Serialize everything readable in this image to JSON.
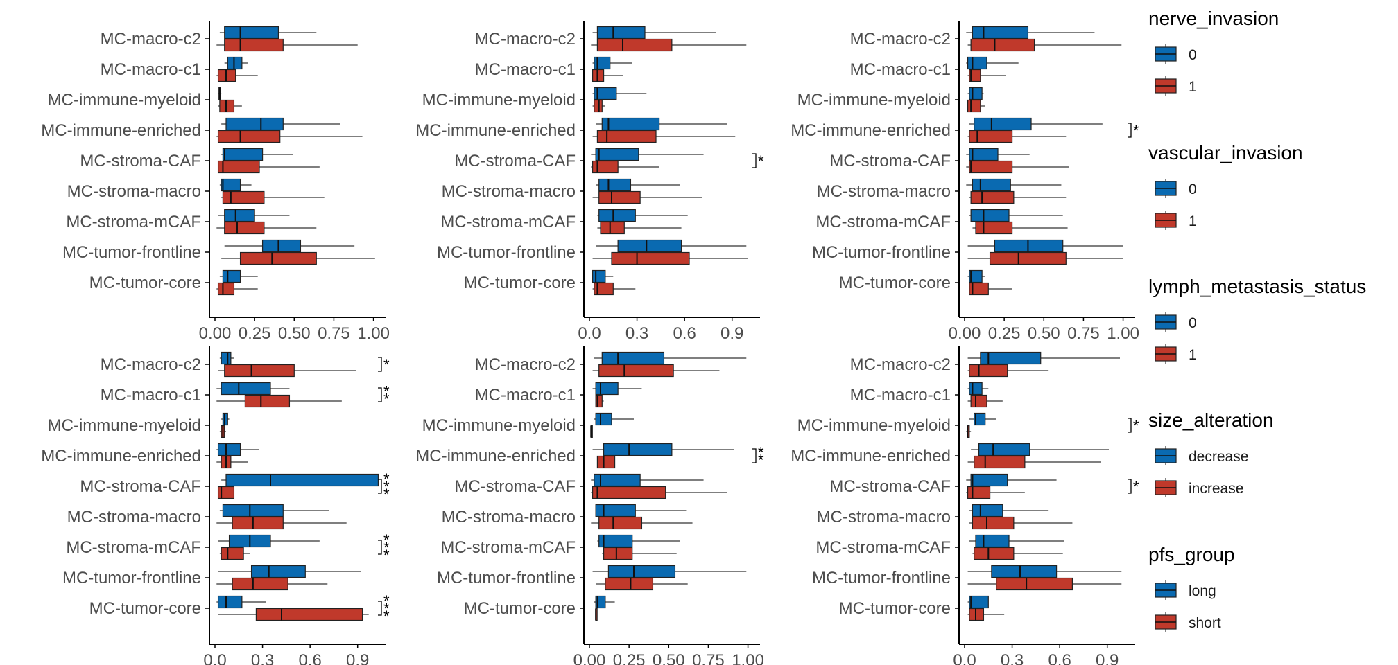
{
  "colors": {
    "group1": "#0A6AB1",
    "group2": "#C0392B",
    "axis": "#000000",
    "text": "#4d4d4d"
  },
  "categories": [
    "MC-macro-c2",
    "MC-macro-c1",
    "MC-immune-myeloid",
    "MC-immune-enriched",
    "MC-stroma-CAF",
    "MC-stroma-macro",
    "MC-stroma-mCAF",
    "MC-tumor-frontline",
    "MC-tumor-core"
  ],
  "legends": [
    {
      "title": "nerve_invasion",
      "labels": [
        "0",
        "1"
      ]
    },
    {
      "title": "vascular_invasion",
      "labels": [
        "0",
        "1"
      ]
    },
    {
      "title": "lymph_metastasis_status",
      "labels": [
        "0",
        "1"
      ]
    },
    {
      "title": "size_alteration",
      "labels": [
        "decrease",
        "increase"
      ]
    },
    {
      "title": "pfs_group",
      "labels": [
        "long",
        "short"
      ]
    }
  ],
  "chart_data": [
    {
      "type": "boxplot",
      "orientation": "horizontal",
      "xlim": [
        0,
        1.05
      ],
      "ticks": [
        0,
        0.25,
        0.5,
        0.75,
        1.0
      ],
      "tick_labels": [
        "0.00",
        "0.25",
        "0.50",
        "0.75",
        "1.00"
      ],
      "grouping": "nerve_invasion",
      "series": [
        {
          "group": "0",
          "boxes": [
            [
              0.03,
              0.06,
              0.16,
              0.4,
              0.64
            ],
            [
              0.06,
              0.08,
              0.12,
              0.17,
              0.21
            ],
            [
              0.02,
              0.025,
              0.03,
              0.035,
              0.04
            ],
            [
              0.04,
              0.07,
              0.29,
              0.43,
              0.79
            ],
            [
              0.04,
              0.05,
              0.06,
              0.3,
              0.49
            ],
            [
              0.03,
              0.04,
              0.05,
              0.16,
              0.23
            ],
            [
              0.02,
              0.06,
              0.13,
              0.25,
              0.47
            ],
            [
              0.06,
              0.3,
              0.4,
              0.54,
              0.88
            ],
            [
              0.03,
              0.05,
              0.08,
              0.16,
              0.27
            ]
          ]
        },
        {
          "group": "1",
          "boxes": [
            [
              0.01,
              0.06,
              0.16,
              0.43,
              0.9
            ],
            [
              0.01,
              0.02,
              0.07,
              0.13,
              0.27
            ],
            [
              0.02,
              0.03,
              0.07,
              0.12,
              0.17
            ],
            [
              0.01,
              0.02,
              0.16,
              0.41,
              0.93
            ],
            [
              0.02,
              0.02,
              0.05,
              0.28,
              0.66
            ],
            [
              0.04,
              0.05,
              0.1,
              0.31,
              0.69
            ],
            [
              0.01,
              0.06,
              0.14,
              0.31,
              0.64
            ],
            [
              0.04,
              0.16,
              0.36,
              0.64,
              1.01
            ],
            [
              0.01,
              0.02,
              0.05,
              0.12,
              0.27
            ]
          ]
        }
      ],
      "significance": []
    },
    {
      "type": "boxplot",
      "orientation": "horizontal",
      "xlim": [
        0,
        1.05
      ],
      "ticks": [
        0,
        0.3,
        0.6,
        0.9
      ],
      "tick_labels": [
        "0.0",
        "0.3",
        "0.6",
        "0.9"
      ],
      "grouping": "vascular_invasion",
      "series": [
        {
          "group": "0",
          "boxes": [
            [
              0.02,
              0.05,
              0.15,
              0.35,
              0.8
            ],
            [
              0.02,
              0.03,
              0.05,
              0.13,
              0.27
            ],
            [
              0.02,
              0.03,
              0.05,
              0.17,
              0.36
            ],
            [
              0.04,
              0.08,
              0.12,
              0.44,
              0.87
            ],
            [
              0.01,
              0.04,
              0.06,
              0.31,
              0.72
            ],
            [
              0.04,
              0.06,
              0.12,
              0.26,
              0.57
            ],
            [
              0.05,
              0.06,
              0.15,
              0.29,
              0.62
            ],
            [
              0.04,
              0.18,
              0.36,
              0.58,
              0.99
            ],
            [
              0.02,
              0.02,
              0.04,
              0.1,
              0.15
            ]
          ]
        },
        {
          "group": "1",
          "boxes": [
            [
              0.01,
              0.05,
              0.21,
              0.52,
              0.99
            ],
            [
              0.02,
              0.02,
              0.05,
              0.09,
              0.21
            ],
            [
              0.02,
              0.03,
              0.06,
              0.08,
              0.1
            ],
            [
              0.02,
              0.05,
              0.11,
              0.42,
              0.92
            ],
            [
              0.01,
              0.02,
              0.05,
              0.18,
              0.44
            ],
            [
              0.02,
              0.06,
              0.14,
              0.32,
              0.71
            ],
            [
              0.05,
              0.07,
              0.13,
              0.22,
              0.58
            ],
            [
              0.02,
              0.14,
              0.3,
              0.63,
              1.0
            ],
            [
              0.02,
              0.03,
              0.05,
              0.15,
              0.29
            ]
          ]
        }
      ],
      "significance": [
        {
          "category": "MC-stroma-CAF",
          "label": "*"
        }
      ]
    },
    {
      "type": "boxplot",
      "orientation": "horizontal",
      "xlim": [
        0,
        1.05
      ],
      "ticks": [
        0,
        0.25,
        0.5,
        0.75,
        1.0
      ],
      "tick_labels": [
        "0.00",
        "0.25",
        "0.50",
        "0.75",
        "1.00"
      ],
      "grouping": "lymph_metastasis_status",
      "series": [
        {
          "group": "0",
          "boxes": [
            [
              0.01,
              0.05,
              0.12,
              0.4,
              0.82
            ],
            [
              0.01,
              0.02,
              0.05,
              0.14,
              0.34
            ],
            [
              0.02,
              0.03,
              0.05,
              0.11,
              0.12
            ],
            [
              0.03,
              0.06,
              0.17,
              0.42,
              0.87
            ],
            [
              0.01,
              0.03,
              0.05,
              0.21,
              0.41
            ],
            [
              0.01,
              0.05,
              0.1,
              0.29,
              0.61
            ],
            [
              0.03,
              0.04,
              0.12,
              0.28,
              0.62
            ],
            [
              0.02,
              0.19,
              0.4,
              0.62,
              1.0
            ],
            [
              0.02,
              0.03,
              0.04,
              0.11,
              0.13
            ]
          ]
        },
        {
          "group": "1",
          "boxes": [
            [
              0.02,
              0.04,
              0.19,
              0.44,
              0.99
            ],
            [
              0.02,
              0.03,
              0.04,
              0.1,
              0.26
            ],
            [
              0.02,
              0.02,
              0.04,
              0.1,
              0.13
            ],
            [
              0.02,
              0.03,
              0.08,
              0.3,
              0.64
            ],
            [
              0.01,
              0.03,
              0.04,
              0.3,
              0.66
            ],
            [
              0.03,
              0.04,
              0.11,
              0.31,
              0.64
            ],
            [
              0.05,
              0.07,
              0.12,
              0.3,
              0.65
            ],
            [
              0.02,
              0.16,
              0.34,
              0.64,
              1.0
            ],
            [
              0.03,
              0.03,
              0.05,
              0.15,
              0.3
            ]
          ]
        }
      ],
      "significance": [
        {
          "category": "MC-immune-enriched",
          "label": "*"
        }
      ]
    },
    {
      "type": "boxplot",
      "orientation": "horizontal",
      "xlim": [
        0,
        1.05
      ],
      "ticks": [
        0,
        0.3,
        0.6,
        0.9
      ],
      "tick_labels": [
        "0.0",
        "0.3",
        "0.6",
        "0.9"
      ],
      "grouping": "size_alteration",
      "series": [
        {
          "group": "decrease",
          "boxes": [
            [
              0.03,
              0.04,
              0.08,
              0.1,
              0.12
            ],
            [
              0.01,
              0.04,
              0.15,
              0.35,
              0.47
            ],
            [
              0.04,
              0.05,
              0.06,
              0.08,
              0.09
            ],
            [
              0.01,
              0.02,
              0.07,
              0.16,
              0.28
            ],
            [
              0.04,
              0.07,
              0.35,
              1.03,
              1.03
            ],
            [
              0.03,
              0.05,
              0.22,
              0.43,
              0.72
            ],
            [
              0.02,
              0.09,
              0.22,
              0.35,
              0.66
            ],
            [
              0.02,
              0.23,
              0.34,
              0.57,
              0.92
            ],
            [
              0.01,
              0.02,
              0.07,
              0.17,
              0.32
            ]
          ]
        },
        {
          "group": "increase",
          "boxes": [
            [
              0.02,
              0.06,
              0.23,
              0.5,
              0.89
            ],
            [
              0.01,
              0.19,
              0.29,
              0.47,
              0.8
            ],
            [
              0.03,
              0.04,
              0.05,
              0.06,
              0.07
            ],
            [
              0.01,
              0.04,
              0.07,
              0.1,
              0.21
            ],
            [
              0.02,
              0.02,
              0.04,
              0.12,
              0.12
            ],
            [
              0.01,
              0.11,
              0.24,
              0.43,
              0.83
            ],
            [
              0.03,
              0.04,
              0.08,
              0.18,
              0.22
            ],
            [
              0.01,
              0.11,
              0.24,
              0.46,
              0.71
            ],
            [
              0.02,
              0.26,
              0.42,
              0.93,
              0.97
            ]
          ]
        }
      ],
      "significance": [
        {
          "category": "MC-macro-c2",
          "label": "*"
        },
        {
          "category": "MC-macro-c1",
          "label": "**"
        },
        {
          "category": "MC-stroma-CAF",
          "label": "***"
        },
        {
          "category": "MC-stroma-mCAF",
          "label": "***"
        },
        {
          "category": "MC-tumor-core",
          "label": "***"
        }
      ]
    },
    {
      "type": "boxplot",
      "orientation": "horizontal",
      "xlim": [
        0,
        1.05
      ],
      "ticks": [
        0,
        0.25,
        0.5,
        0.75,
        1.0
      ],
      "tick_labels": [
        "0.00",
        "0.25",
        "0.50",
        "0.75",
        "1.00"
      ],
      "grouping": "pfs_group",
      "series": [
        {
          "group": "long",
          "boxes": [
            [
              0.03,
              0.08,
              0.18,
              0.47,
              0.99
            ],
            [
              0.02,
              0.04,
              0.07,
              0.18,
              0.33
            ],
            [
              0.03,
              0.04,
              0.07,
              0.14,
              0.28
            ],
            [
              0.02,
              0.09,
              0.25,
              0.52,
              0.91
            ],
            [
              0.01,
              0.03,
              0.07,
              0.32,
              0.72
            ],
            [
              0.04,
              0.04,
              0.09,
              0.29,
              0.61
            ],
            [
              0.05,
              0.06,
              0.09,
              0.27,
              0.57
            ],
            [
              0.02,
              0.12,
              0.28,
              0.54,
              0.99
            ],
            [
              0.03,
              0.04,
              0.05,
              0.1,
              0.16
            ]
          ]
        },
        {
          "group": "short",
          "boxes": [
            [
              0.02,
              0.06,
              0.22,
              0.53,
              0.82
            ],
            [
              0.04,
              0.04,
              0.05,
              0.08,
              0.09
            ],
            [
              0.01,
              0.01,
              0.01,
              0.01,
              0.01
            ],
            [
              0.05,
              0.05,
              0.09,
              0.16,
              0.16
            ],
            [
              0.01,
              0.02,
              0.05,
              0.48,
              0.87
            ],
            [
              0.01,
              0.06,
              0.15,
              0.33,
              0.65
            ],
            [
              0.08,
              0.09,
              0.17,
              0.27,
              0.55
            ],
            [
              0.04,
              0.1,
              0.26,
              0.4,
              0.62
            ],
            [
              0.04,
              0.04,
              0.04,
              0.04,
              0.04
            ]
          ]
        }
      ],
      "significance": [
        {
          "category": "MC-immune-enriched",
          "label": "**"
        }
      ]
    },
    {
      "type": "boxplot",
      "orientation": "horizontal",
      "xlim": [
        0,
        1.05
      ],
      "ticks": [
        0,
        0.3,
        0.6,
        0.9
      ],
      "tick_labels": [
        "0.0",
        "0.3",
        "0.6",
        "0.9"
      ],
      "grouping": "unlabeled",
      "series": [
        {
          "group": "blue",
          "boxes": [
            [
              0.02,
              0.1,
              0.15,
              0.48,
              0.98
            ],
            [
              0.02,
              0.03,
              0.05,
              0.11,
              0.15
            ],
            [
              0.03,
              0.06,
              0.07,
              0.13,
              0.2
            ],
            [
              0.04,
              0.09,
              0.18,
              0.41,
              0.91
            ],
            [
              0.01,
              0.04,
              0.05,
              0.27,
              0.58
            ],
            [
              0.03,
              0.05,
              0.1,
              0.24,
              0.53
            ],
            [
              0.03,
              0.07,
              0.12,
              0.28,
              0.63
            ],
            [
              0.02,
              0.17,
              0.35,
              0.58,
              0.99
            ],
            [
              0.02,
              0.03,
              0.04,
              0.15,
              0.15
            ]
          ]
        },
        {
          "group": "red",
          "boxes": [
            [
              0.02,
              0.03,
              0.09,
              0.27,
              0.53
            ],
            [
              0.02,
              0.04,
              0.07,
              0.14,
              0.24
            ],
            [
              0.01,
              0.02,
              0.02,
              0.03,
              0.04
            ],
            [
              0.02,
              0.06,
              0.13,
              0.38,
              0.86
            ],
            [
              0.01,
              0.02,
              0.05,
              0.16,
              0.38
            ],
            [
              0.03,
              0.05,
              0.14,
              0.31,
              0.68
            ],
            [
              0.05,
              0.06,
              0.15,
              0.31,
              0.62
            ],
            [
              0.02,
              0.2,
              0.39,
              0.68,
              0.99
            ],
            [
              0.02,
              0.03,
              0.07,
              0.12,
              0.25
            ]
          ]
        }
      ],
      "significance": [
        {
          "category": "MC-immune-myeloid",
          "label": "*"
        },
        {
          "category": "MC-stroma-CAF",
          "label": "*"
        }
      ]
    }
  ]
}
